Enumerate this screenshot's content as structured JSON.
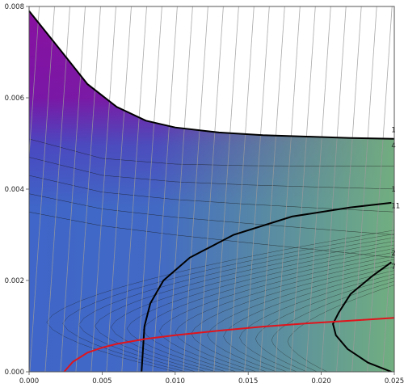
{
  "chart_data": {
    "type": "contour",
    "title": "",
    "xlabel": "",
    "ylabel": "",
    "xlim": [
      0.0,
      0.025
    ],
    "ylim": [
      0.0,
      0.008
    ],
    "x_ticks": [
      "0.000",
      "0.005",
      "0.010",
      "0.015",
      "0.020",
      "0.025"
    ],
    "y_ticks": [
      "0.000",
      "0.002",
      "0.004",
      "0.006",
      "0.008"
    ],
    "x_tick_values": [
      0.0,
      0.005,
      0.01,
      0.015,
      0.02,
      0.025
    ],
    "y_tick_values": [
      0.0,
      0.002,
      0.004,
      0.006,
      0.008
    ],
    "grid": false,
    "colormap": {
      "low": "#7a16a6",
      "mid": "#3f66c8",
      "high": "#74b27c"
    },
    "feasible_boundary": {
      "name": "",
      "color": "#000000",
      "x": [
        0.0,
        0.002,
        0.004,
        0.006,
        0.008,
        0.01,
        0.013,
        0.016,
        0.019,
        0.022,
        0.025
      ],
      "y": [
        0.0079,
        0.0071,
        0.0063,
        0.0058,
        0.0055,
        0.00535,
        0.00524,
        0.00518,
        0.00515,
        0.00512,
        0.0051
      ]
    },
    "red_curve": {
      "name": "",
      "color": "#e0141c",
      "x": [
        0.0024,
        0.003,
        0.004,
        0.005,
        0.006,
        0.008,
        0.01,
        0.013,
        0.016,
        0.019,
        0.022,
        0.025
      ],
      "y": [
        0.0,
        0.00022,
        0.00042,
        0.00053,
        0.00061,
        0.00072,
        0.0008,
        0.0009,
        0.00099,
        0.00106,
        0.00112,
        0.00118
      ]
    },
    "thick_contours": [
      {
        "x": [
          0.0248,
          0.022,
          0.018,
          0.014,
          0.011,
          0.0092,
          0.0083,
          0.0079,
          0.0077
        ],
        "y": [
          0.0037,
          0.0036,
          0.0034,
          0.003,
          0.0025,
          0.002,
          0.0015,
          0.001,
          0.0
        ]
      },
      {
        "x": [
          0.0248,
          0.0235,
          0.022,
          0.0212,
          0.0208,
          0.021,
          0.0218,
          0.0232,
          0.0248
        ],
        "y": [
          0.0024,
          0.0021,
          0.0017,
          0.0013,
          0.00105,
          0.0008,
          0.0005,
          0.0002,
          0.0
        ]
      }
    ],
    "contour_labels": [
      "1",
      "4",
      "1",
      "11",
      "2",
      "7"
    ]
  }
}
